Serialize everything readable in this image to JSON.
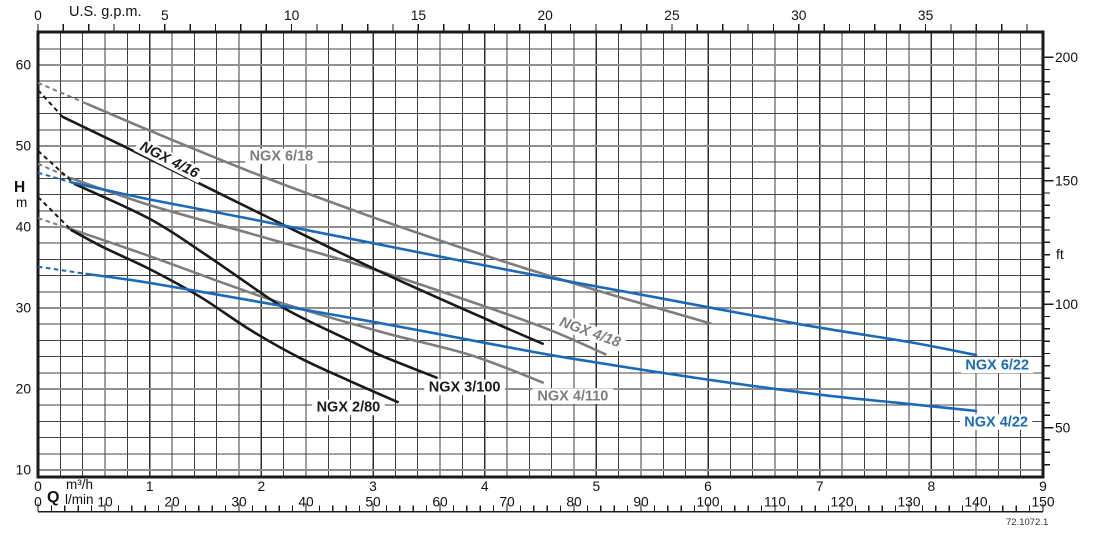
{
  "chart_data": {
    "type": "line",
    "flow_symbol": "Q",
    "figure_code": "72.1072.1",
    "colors": {
      "black": "#1a1a1a",
      "gray": "#7d7d7d",
      "blue": "#1a6ab8"
    },
    "axes": {
      "top": {
        "unit": "U.S. g.p.m.",
        "min": 0,
        "max": 39.63,
        "tick_step": 1,
        "labels": [
          0,
          5,
          10,
          15,
          20,
          25,
          30,
          35
        ]
      },
      "bottom_m3h": {
        "unit": "m³/h",
        "min": 0,
        "max": 9,
        "labels": [
          0,
          1,
          2,
          3,
          4,
          5,
          6,
          7,
          8,
          9
        ]
      },
      "bottom_lmin": {
        "unit": "l/min",
        "min": 0,
        "max": 150,
        "tick_step": 2,
        "labels": [
          0,
          10,
          20,
          30,
          40,
          50,
          60,
          70,
          80,
          90,
          100,
          110,
          120,
          130,
          140,
          150
        ]
      },
      "left": {
        "quantity": "H",
        "unit": "m",
        "grid_step_m": 2,
        "labels": [
          10,
          20,
          30,
          40,
          50,
          60
        ]
      },
      "right": {
        "unit": "ft",
        "tick_step": 5,
        "tick_min": 35,
        "tick_max": 200,
        "labels": [
          50,
          100,
          150,
          200
        ]
      }
    },
    "series": [
      {
        "name": "NGX 6/18",
        "color": "gray",
        "label": {
          "q": 2.18,
          "h": 48.2,
          "angle": 0,
          "italic": false
        },
        "dash": [
          [
            0,
            57.8
          ],
          [
            0.44,
            55.2
          ]
        ],
        "points": [
          [
            0.44,
            55.2
          ],
          [
            1,
            51.9
          ],
          [
            2,
            46.3
          ],
          [
            3,
            41.2
          ],
          [
            4,
            36.5
          ],
          [
            5,
            32.2
          ],
          [
            6.02,
            28.1
          ]
        ]
      },
      {
        "name": "NGX 4/18",
        "color": "gray",
        "label": {
          "q": 4.93,
          "h": 26.5,
          "angle": 20,
          "italic": true
        },
        "dash": [
          [
            0,
            47.8
          ],
          [
            0.3,
            46
          ]
        ],
        "points": [
          [
            0.3,
            46
          ],
          [
            1,
            42.7
          ],
          [
            1.9,
            39.2
          ],
          [
            3,
            34.8
          ],
          [
            4,
            30.2
          ],
          [
            4.6,
            27.2
          ],
          [
            5.08,
            24.3
          ]
        ]
      },
      {
        "name": "NGX 4/110",
        "color": "gray",
        "label": {
          "q": 4.79,
          "h": 18.6,
          "angle": 0,
          "italic": false
        },
        "dash": [
          [
            0,
            41.1
          ],
          [
            0.26,
            39.9
          ]
        ],
        "points": [
          [
            0.26,
            39.9
          ],
          [
            1,
            36.4
          ],
          [
            2.05,
            31.2
          ],
          [
            3.06,
            27.1
          ],
          [
            3.87,
            24.2
          ],
          [
            4.52,
            20.8
          ]
        ]
      },
      {
        "name": "NGX 4/16",
        "color": "black",
        "label": {
          "q": 1.16,
          "h": 47.8,
          "angle": 27,
          "italic": true
        },
        "dash": [
          [
            0,
            56.9
          ],
          [
            0.22,
            53.6
          ]
        ],
        "points": [
          [
            0.22,
            53.6
          ],
          [
            1,
            48.4
          ],
          [
            2,
            41.6
          ],
          [
            3,
            34.9
          ],
          [
            4,
            28.7
          ],
          [
            4.52,
            25.6
          ]
        ]
      },
      {
        "name": "NGX 3/100",
        "color": "black",
        "label": {
          "q": 3.82,
          "h": 19.7,
          "angle": 0,
          "italic": false
        },
        "dash": [
          [
            0,
            49.4
          ],
          [
            0.33,
            45.3
          ]
        ],
        "points": [
          [
            0.33,
            45.3
          ],
          [
            1,
            41
          ],
          [
            1.5,
            36.6
          ],
          [
            2.09,
            31
          ],
          [
            2.35,
            28.9
          ],
          [
            2.79,
            26
          ],
          [
            3.06,
            24.2
          ],
          [
            3.57,
            21.4
          ]
        ]
      },
      {
        "name": "NGX 2/80",
        "color": "black",
        "label": {
          "q": 2.78,
          "h": 17.2,
          "angle": 0,
          "italic": false
        },
        "dash": [
          [
            0,
            43.7
          ],
          [
            0.3,
            39.6
          ]
        ],
        "points": [
          [
            0.3,
            39.6
          ],
          [
            0.6,
            37.4
          ],
          [
            1,
            34.8
          ],
          [
            1.45,
            31.4
          ],
          [
            1.9,
            27.3
          ],
          [
            2.35,
            23.8
          ],
          [
            2.79,
            21
          ],
          [
            3.22,
            18.4
          ]
        ]
      },
      {
        "name": "NGX 6/22",
        "color": "blue",
        "label": {
          "q": 8.59,
          "h": 22.4,
          "angle": 0,
          "italic": false
        },
        "dash": [
          [
            0,
            46.7
          ],
          [
            0.3,
            45.5
          ]
        ],
        "points": [
          [
            0.3,
            45.5
          ],
          [
            1,
            43.4
          ],
          [
            1.9,
            41
          ],
          [
            3,
            38
          ],
          [
            4.32,
            34.4
          ],
          [
            5.5,
            31.4
          ],
          [
            6.82,
            28
          ],
          [
            7.8,
            25.8
          ],
          [
            8.4,
            24.2
          ]
        ]
      },
      {
        "name": "NGX 4/22",
        "color": "blue",
        "label": {
          "q": 8.58,
          "h": 15.4,
          "angle": 0,
          "italic": false
        },
        "dash": [
          [
            0,
            35.1
          ],
          [
            0.44,
            34.2
          ]
        ],
        "points": [
          [
            0.44,
            34.2
          ],
          [
            1,
            33.1
          ],
          [
            2,
            30.7
          ],
          [
            3,
            28.3
          ],
          [
            4,
            25.7
          ],
          [
            4.76,
            23.8
          ],
          [
            5.93,
            21.3
          ],
          [
            7,
            19.3
          ],
          [
            7.7,
            18.3
          ],
          [
            8.4,
            17.3
          ]
        ]
      }
    ]
  }
}
